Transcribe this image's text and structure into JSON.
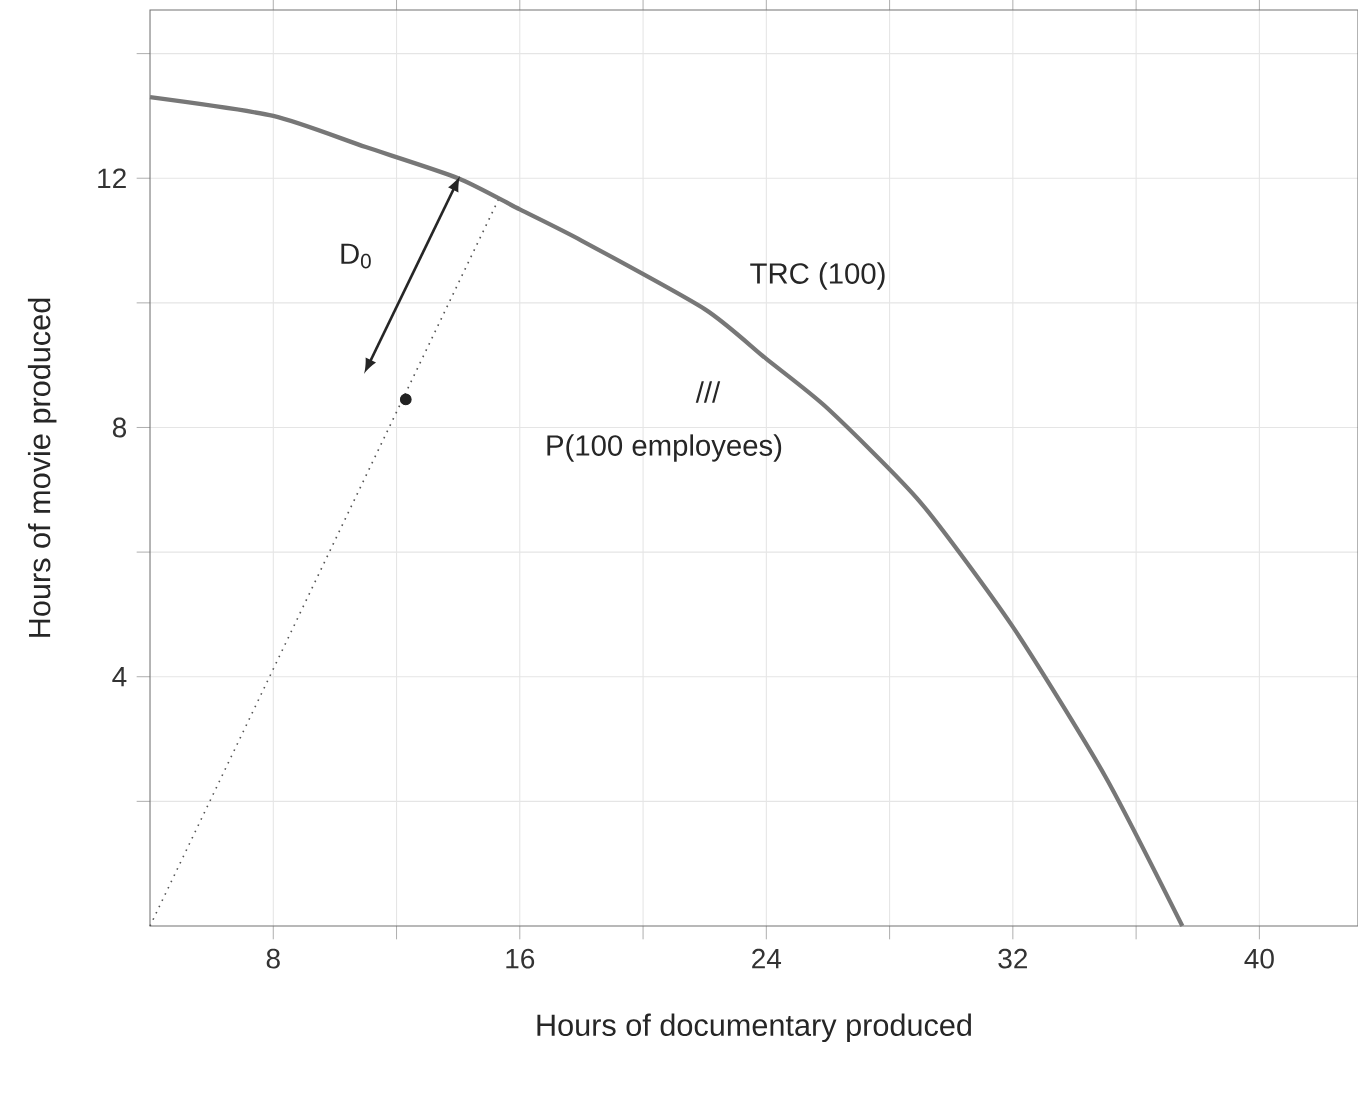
{
  "chart_data": {
    "type": "line",
    "xlabel": "Hours of documentary produced",
    "ylabel": "Hours of movie produced",
    "series": [
      {
        "color": "#777777",
        "line_style": "solid",
        "x": [
          4,
          8,
          11,
          14,
          16,
          18,
          22,
          24,
          26,
          29,
          32,
          35,
          37.5
        ],
        "values": [
          13.3,
          13.0,
          12.5,
          12.0,
          11.5,
          11.0,
          9.9,
          9.1,
          8.3,
          6.8,
          4.8,
          2.4,
          0
        ]
      },
      {
        "color": "#555555",
        "line_style": "dotted",
        "x": [
          4,
          15.3
        ],
        "values": [
          0,
          11.65
        ]
      },
      {
        "type": "scatter",
        "color": "#222222",
        "marker": "circle",
        "x": [
          12.3
        ],
        "values": [
          8.45
        ]
      }
    ],
    "annotations": [
      "D$_{0}$",
      "TRC (100)",
      "///",
      "P(100 employees)"
    ],
    "xlim": [
      4,
      43.2
    ],
    "ylim": [
      0,
      14.7
    ],
    "xticks": [
      8,
      {
        "value": 12,
        "label": null
      },
      16,
      {
        "value": 20,
        "label": null
      },
      24,
      {
        "value": 28,
        "label": null
      },
      32,
      {
        "value": 36,
        "label": null
      },
      40
    ],
    "yticks": [
      {
        "value": 2,
        "label": null
      },
      4,
      {
        "value": 6,
        "label": null
      },
      8,
      {
        "value": 10,
        "label": null
      },
      12,
      {
        "value": 14,
        "label": null
      }
    ],
    "grid": true
  }
}
